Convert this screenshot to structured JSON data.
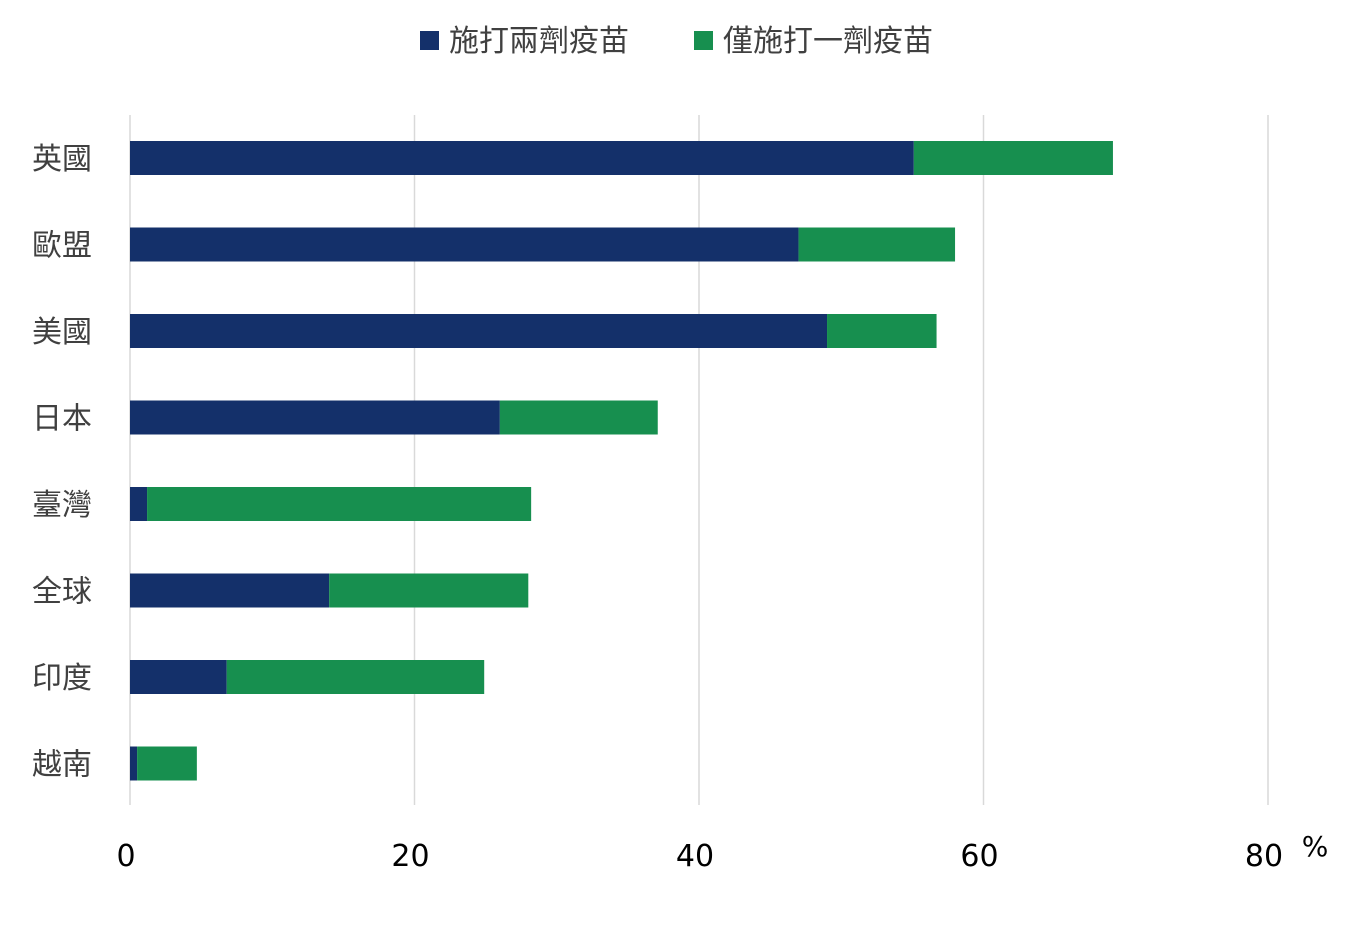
{
  "chart_data": {
    "type": "bar",
    "orientation": "horizontal",
    "stacked": true,
    "categories": [
      "英國",
      "歐盟",
      "美國",
      "日本",
      "臺灣",
      "全球",
      "印度",
      "越南"
    ],
    "series": [
      {
        "name": "施打兩劑疫苗",
        "color": "#14306a",
        "values": [
          55.1,
          47.0,
          49.0,
          26.0,
          1.2,
          14.0,
          6.8,
          0.5
        ]
      },
      {
        "name": "僅施打一劑疫苗",
        "color": "#178f4f",
        "values": [
          14.0,
          11.0,
          7.7,
          11.1,
          27.0,
          14.0,
          18.1,
          4.2
        ]
      }
    ],
    "xlim": [
      0,
      80
    ],
    "xticks": [
      "0",
      "20",
      "40",
      "60",
      "80"
    ],
    "x_unit": "%",
    "grid": true,
    "legend": "top-center"
  }
}
